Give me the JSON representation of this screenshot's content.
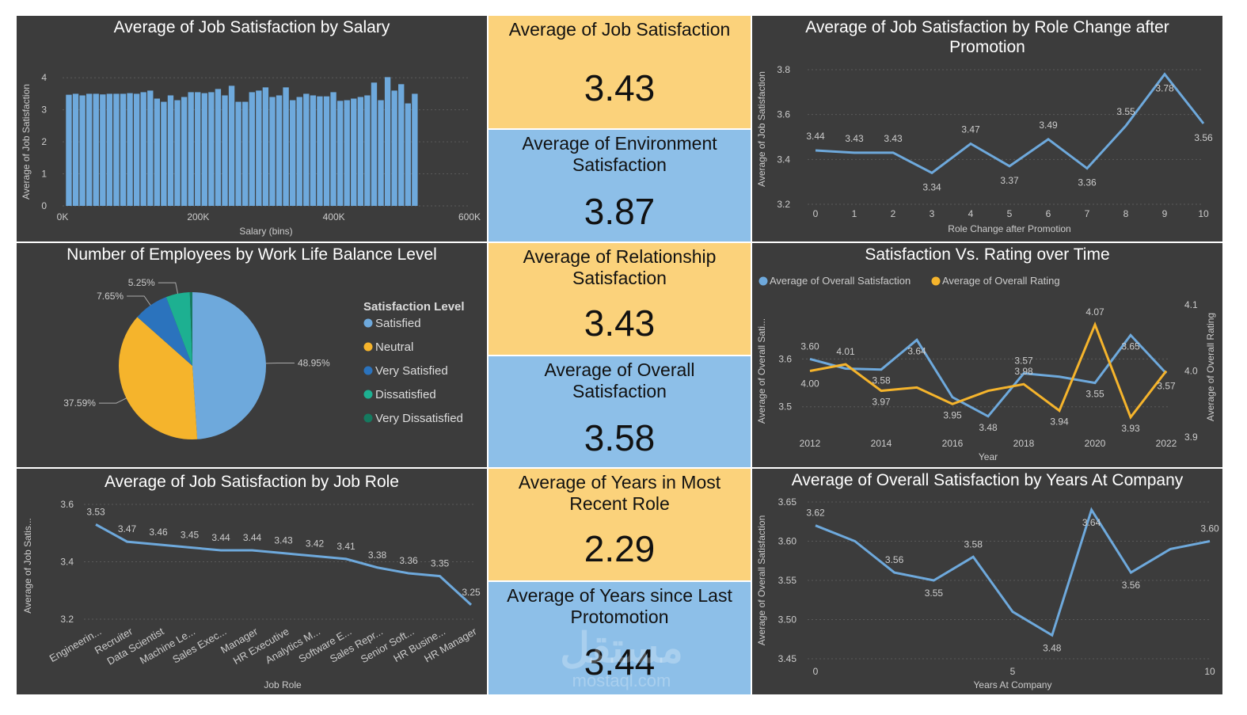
{
  "colors": {
    "panel_bg": "#3c3c3c",
    "kpi_yellow": "#fbd27b",
    "kpi_blue": "#8dbfe8",
    "series_blue": "#6ea9dc",
    "series_orange": "#f5b42c",
    "axis_text": "#cccccc",
    "grid": "#5a5a5a"
  },
  "kpis": [
    {
      "title": "Average of Job Satisfaction",
      "value": "3.43",
      "color": "yellow"
    },
    {
      "title": "Average of Environment Satisfaction",
      "value": "3.87",
      "color": "blue"
    },
    {
      "title": "Average of Relationship Satisfaction",
      "value": "3.43",
      "color": "yellow"
    },
    {
      "title": "Average of Overall Satisfaction",
      "value": "3.58",
      "color": "blue"
    },
    {
      "title": "Average of Years in Most Recent Role",
      "value": "2.29",
      "color": "yellow"
    },
    {
      "title": "Average of Years since Last Protomotion",
      "value": "3.44",
      "color": "blue"
    }
  ],
  "watermark": {
    "line1": "مستقل",
    "line2": "mostaql.com"
  },
  "chart_data": [
    {
      "id": "salary",
      "type": "bar",
      "title": "Average of Job Satisfaction by Salary",
      "xlabel": "Salary (bins)",
      "ylabel": "Average of Job Satisfaction",
      "xlim": [
        0,
        600000
      ],
      "ylim": [
        0,
        4.5
      ],
      "x_ticks": [
        "0K",
        "200K",
        "400K",
        "600K"
      ],
      "y_ticks": [
        "0",
        "1",
        "2",
        "3",
        "4"
      ],
      "bin_width": 10000,
      "bins": [
        {
          "x": 10000,
          "y": 3.47
        },
        {
          "x": 20000,
          "y": 3.5
        },
        {
          "x": 30000,
          "y": 3.45
        },
        {
          "x": 40000,
          "y": 3.5
        },
        {
          "x": 50000,
          "y": 3.5
        },
        {
          "x": 60000,
          "y": 3.48
        },
        {
          "x": 70000,
          "y": 3.5
        },
        {
          "x": 80000,
          "y": 3.5
        },
        {
          "x": 90000,
          "y": 3.5
        },
        {
          "x": 100000,
          "y": 3.52
        },
        {
          "x": 110000,
          "y": 3.5
        },
        {
          "x": 120000,
          "y": 3.55
        },
        {
          "x": 130000,
          "y": 3.6
        },
        {
          "x": 140000,
          "y": 3.35
        },
        {
          "x": 150000,
          "y": 3.25
        },
        {
          "x": 160000,
          "y": 3.45
        },
        {
          "x": 170000,
          "y": 3.3
        },
        {
          "x": 180000,
          "y": 3.4
        },
        {
          "x": 190000,
          "y": 3.55
        },
        {
          "x": 200000,
          "y": 3.55
        },
        {
          "x": 210000,
          "y": 3.52
        },
        {
          "x": 220000,
          "y": 3.55
        },
        {
          "x": 230000,
          "y": 3.65
        },
        {
          "x": 240000,
          "y": 3.45
        },
        {
          "x": 250000,
          "y": 3.75
        },
        {
          "x": 260000,
          "y": 3.25
        },
        {
          "x": 270000,
          "y": 3.25
        },
        {
          "x": 280000,
          "y": 3.55
        },
        {
          "x": 290000,
          "y": 3.6
        },
        {
          "x": 300000,
          "y": 3.7
        },
        {
          "x": 310000,
          "y": 3.4
        },
        {
          "x": 320000,
          "y": 3.45
        },
        {
          "x": 330000,
          "y": 3.7
        },
        {
          "x": 340000,
          "y": 3.3
        },
        {
          "x": 350000,
          "y": 3.4
        },
        {
          "x": 360000,
          "y": 3.5
        },
        {
          "x": 370000,
          "y": 3.45
        },
        {
          "x": 380000,
          "y": 3.42
        },
        {
          "x": 390000,
          "y": 3.42
        },
        {
          "x": 400000,
          "y": 3.55
        },
        {
          "x": 410000,
          "y": 3.28
        },
        {
          "x": 420000,
          "y": 3.3
        },
        {
          "x": 430000,
          "y": 3.35
        },
        {
          "x": 440000,
          "y": 3.4
        },
        {
          "x": 450000,
          "y": 3.45
        },
        {
          "x": 460000,
          "y": 3.85
        },
        {
          "x": 470000,
          "y": 3.3
        },
        {
          "x": 480000,
          "y": 4.02
        },
        {
          "x": 490000,
          "y": 3.6
        },
        {
          "x": 500000,
          "y": 3.8
        },
        {
          "x": 510000,
          "y": 3.2
        },
        {
          "x": 520000,
          "y": 3.5
        }
      ]
    },
    {
      "id": "role_change",
      "type": "line",
      "title": "Average of Job Satisfaction by Role Change after Promotion",
      "xlabel": "Role Change after Promotion",
      "ylabel": "Average of Job Satisfaction",
      "x": [
        0,
        1,
        2,
        3,
        4,
        5,
        6,
        7,
        8,
        9,
        10
      ],
      "y": [
        3.44,
        3.43,
        3.43,
        3.34,
        3.47,
        3.37,
        3.49,
        3.36,
        3.55,
        3.78,
        3.56
      ],
      "labels": [
        "3.44",
        "3.43",
        "3.43",
        "3.34",
        "3.47",
        "3.37",
        "3.49",
        "3.36",
        "3.55",
        "3.78",
        "3.56"
      ],
      "label_pos": [
        "up",
        "up",
        "up",
        "down",
        "up",
        "down",
        "up",
        "down",
        "up",
        "down",
        "down"
      ],
      "x_ticks": [
        "0",
        "1",
        "2",
        "3",
        "4",
        "5",
        "6",
        "7",
        "8",
        "9",
        "10"
      ],
      "y_ticks": [
        "3.2",
        "3.4",
        "3.6",
        "3.8"
      ],
      "ylim": [
        3.2,
        3.8
      ]
    },
    {
      "id": "wlb",
      "type": "pie",
      "title": "Number of Employees by Work Life Balance Level",
      "legend_title": "Satisfaction Level",
      "slices": [
        {
          "name": "Satisfied",
          "value": 48.95,
          "label": "48.95%",
          "color": "#6ea9dc"
        },
        {
          "name": "Neutral",
          "value": 37.59,
          "label": "37.59%",
          "color": "#f5b42c"
        },
        {
          "name": "Very Satisfied",
          "value": 7.65,
          "label": "7.65%",
          "color": "#2b73bd"
        },
        {
          "name": "Dissatisfied",
          "value": 5.25,
          "label": "5.25%",
          "color": "#1db091"
        },
        {
          "name": "Very Dissatisfied",
          "value": 0.56,
          "label": "",
          "color": "#157a5f"
        }
      ]
    },
    {
      "id": "sat_vs_rating",
      "type": "line",
      "title": "Satisfaction Vs. Rating over Time",
      "xlabel": "Year",
      "ylabel_left": "Average of Overall Sati...",
      "ylabel_right": "Average of Overall Rating",
      "x": [
        2012,
        2013,
        2014,
        2015,
        2016,
        2017,
        2018,
        2019,
        2020,
        2021,
        2022
      ],
      "x_ticks": [
        "2012",
        "2014",
        "2016",
        "2018",
        "2020",
        "2022"
      ],
      "y_left_ticks": [
        "3.5",
        "3.6"
      ],
      "y_right_ticks": [
        "3.9",
        "4.0",
        "4.1"
      ],
      "ylim_left": [
        3.4365,
        3.7135
      ],
      "ylim_right": [
        3.9,
        4.1
      ],
      "series": [
        {
          "name": "Average of Overall Satisfaction",
          "axis": "left",
          "color": "#6ea9dc",
          "values": [
            3.6,
            3.58,
            3.578,
            3.64,
            3.52,
            3.48,
            3.57,
            3.563,
            3.55,
            3.65,
            3.57
          ],
          "labels": [
            "3.60",
            "",
            "3.58",
            "3.64",
            "",
            "3.48",
            "3.57",
            "",
            "3.55",
            "3.65",
            "3.57"
          ]
        },
        {
          "name": "Average of Overall Rating",
          "axis": "right",
          "color": "#f5b42c",
          "values": [
            4.0,
            4.01,
            3.97,
            3.975,
            3.95,
            3.97,
            3.98,
            3.94,
            4.07,
            3.93,
            4.0
          ],
          "labels": [
            "4.00",
            "4.01",
            "3.97",
            "",
            "3.95",
            "",
            "3.98",
            "3.94",
            "4.07",
            "3.93",
            ""
          ]
        }
      ]
    },
    {
      "id": "job_role",
      "type": "line",
      "title": "Average of Job Satisfaction by Job Role",
      "xlabel": "Job Role",
      "ylabel": "Average of Job Satis...",
      "categories": [
        "Engineerin...",
        "Recruiter",
        "Data Scientist",
        "Machine Le...",
        "Sales Exec...",
        "Manager",
        "HR Executive",
        "Analytics M...",
        "Software E...",
        "Sales Repr...",
        "Senior Soft...",
        "HR Busine...",
        "HR Manager"
      ],
      "values": [
        3.53,
        3.47,
        3.46,
        3.45,
        3.44,
        3.44,
        3.43,
        3.42,
        3.41,
        3.38,
        3.36,
        3.35,
        3.25
      ],
      "labels": [
        "3.53",
        "3.47",
        "3.46",
        "3.45",
        "3.44",
        "3.44",
        "3.43",
        "3.42",
        "3.41",
        "3.38",
        "3.36",
        "3.35",
        "3.25"
      ],
      "y_ticks": [
        "3.2",
        "3.4",
        "3.6"
      ],
      "ylim": [
        3.2,
        3.6
      ]
    },
    {
      "id": "years_company",
      "type": "line",
      "title": "Average of Overall Satisfaction by Years At Company",
      "xlabel": "Years At Company",
      "ylabel": "Average of Overall Satisfaction",
      "x": [
        0,
        1,
        2,
        3,
        4,
        5,
        6,
        7,
        8,
        9,
        10
      ],
      "y": [
        3.62,
        3.6,
        3.56,
        3.55,
        3.58,
        3.51,
        3.48,
        3.64,
        3.56,
        3.59,
        3.6
      ],
      "labels": [
        "3.62",
        "",
        "3.56",
        "3.55",
        "3.58",
        "",
        "3.48",
        "3.64",
        "3.56",
        "",
        "3.60"
      ],
      "label_pos": [
        "up",
        "up",
        "up",
        "down",
        "up",
        "up",
        "down",
        "down",
        "down",
        "up",
        "up"
      ],
      "x_ticks": [
        "0",
        "5",
        "10"
      ],
      "y_ticks": [
        "3.45",
        "3.50",
        "3.55",
        "3.60",
        "3.65"
      ],
      "ylim": [
        3.45,
        3.65
      ]
    }
  ]
}
